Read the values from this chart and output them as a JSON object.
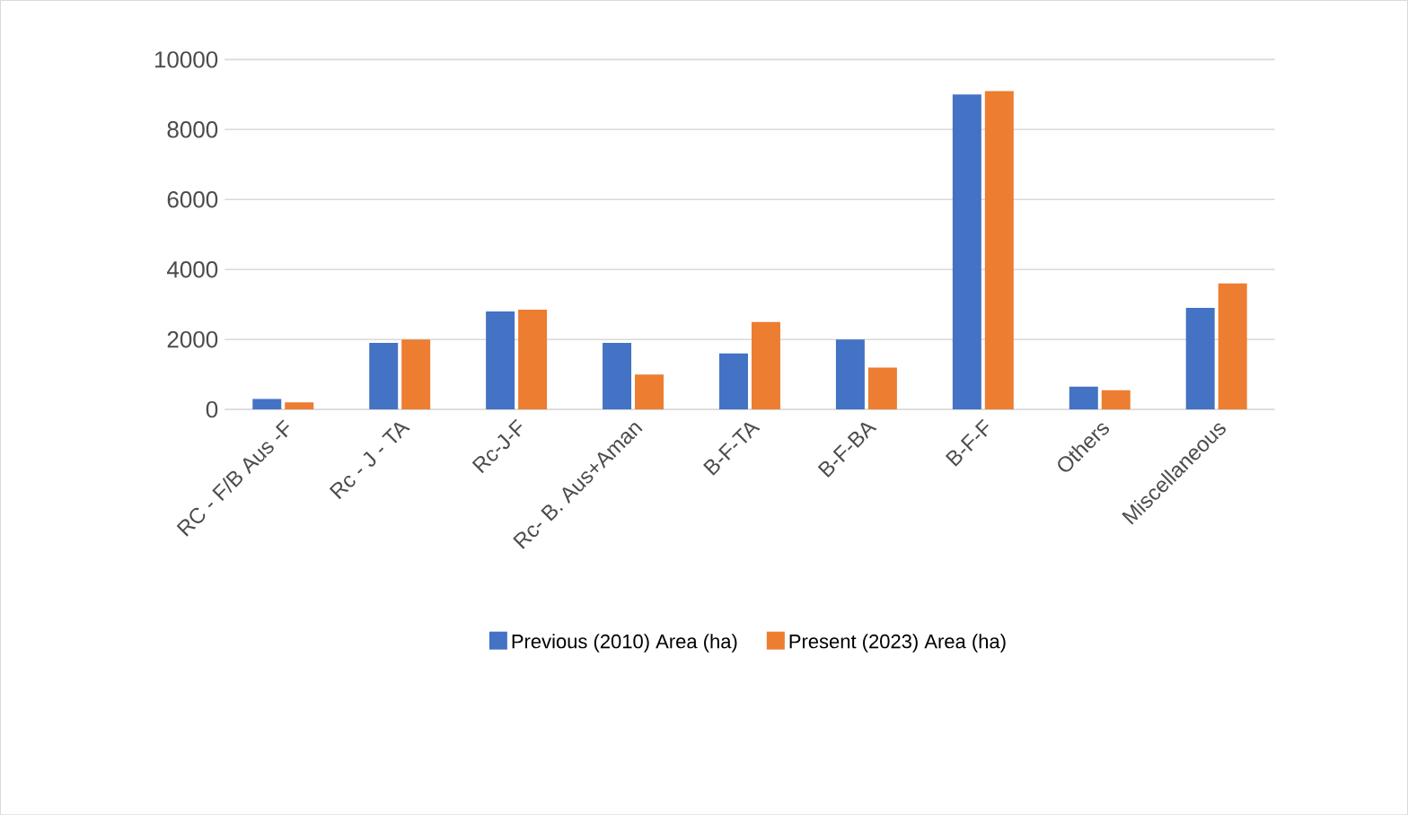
{
  "chart_data": {
    "type": "bar",
    "categories": [
      "RC - F/B Aus -F",
      "Rc - J - TA",
      "Rc-J-F",
      "Rc- B. Aus+Aman",
      "B-F-TA",
      "B-F-BA",
      "B-F-F",
      "Others",
      "Miscellaneous"
    ],
    "series": [
      {
        "name": "Previous (2010) Area (ha)",
        "color": "#4472c4",
        "values": [
          300,
          1900,
          2800,
          1900,
          1600,
          2000,
          9000,
          650,
          2900
        ]
      },
      {
        "name": "Present (2023) Area (ha)",
        "color": "#ed7d31",
        "values": [
          200,
          2000,
          2850,
          1000,
          2500,
          1200,
          9100,
          550,
          3600
        ]
      }
    ],
    "ylim": [
      0,
      10000
    ],
    "yticks": [
      0,
      2000,
      4000,
      6000,
      8000,
      10000
    ],
    "grid": "y",
    "legend": "bottom"
  }
}
